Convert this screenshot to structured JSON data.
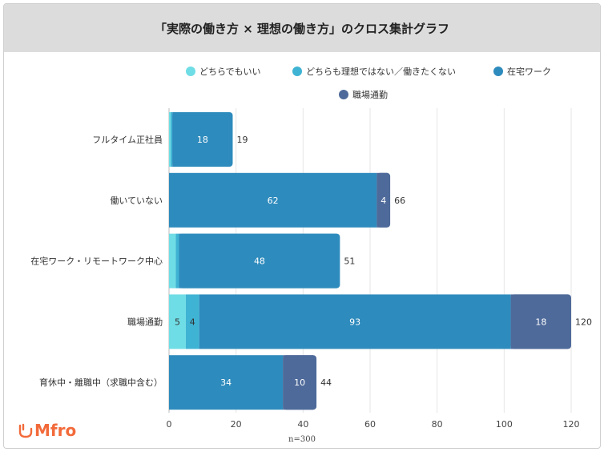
{
  "title": "「実際の働き方 × 理想の働き方」のクロス集計グラフ",
  "note": "n=300",
  "logo": {
    "text": "Mfro",
    "icon": "heart-outline-icon",
    "color": "#f26a3a"
  },
  "colors": [
    "#6fdde5",
    "#3fb3d3",
    "#2e8bbd",
    "#4e6a9a"
  ],
  "chart_data": {
    "type": "bar",
    "orientation": "horizontal",
    "stacked": true,
    "title": "「実際の働き方 × 理想の働き方」のクロス集計グラフ",
    "xlabel": "",
    "ylabel": "",
    "xlim": [
      0,
      120
    ],
    "xticks": [
      0,
      20,
      40,
      60,
      80,
      100,
      120
    ],
    "grid": true,
    "legend_position": "top-right",
    "categories": [
      "フルタイム正社員",
      "働いていない",
      "在宅ワーク・リモートワーク中心",
      "職場通勤",
      "育休中・離職中（求職中含む）"
    ],
    "series": [
      {
        "name": "どちらでもいい",
        "values": [
          0.5,
          0,
          2,
          5,
          0
        ]
      },
      {
        "name": "どちらも理想ではない／働きたくない",
        "values": [
          0.5,
          0,
          1,
          4,
          0
        ]
      },
      {
        "name": "在宅ワーク",
        "values": [
          18,
          62,
          48,
          93,
          34
        ]
      },
      {
        "name": "職場通勤",
        "values": [
          0,
          4,
          0,
          18,
          10
        ]
      }
    ],
    "segment_labels": [
      [
        null,
        null,
        "18",
        null
      ],
      [
        null,
        null,
        "62",
        "4"
      ],
      [
        null,
        null,
        "48",
        null
      ],
      [
        "5",
        "4",
        "93",
        "18"
      ],
      [
        null,
        null,
        "34",
        "10"
      ]
    ],
    "totals": [
      "19",
      "66",
      "51",
      "120",
      "44"
    ]
  }
}
